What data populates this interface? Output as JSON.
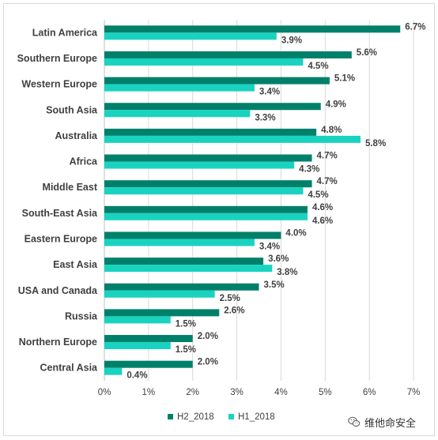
{
  "chart_data": {
    "type": "bar",
    "orientation": "horizontal",
    "categories": [
      "Latin America",
      "Southern Europe",
      "Western Europe",
      "South Asia",
      "Australia",
      "Africa",
      "Middle East",
      "South-East Asia",
      "Eastern Europe",
      "East Asia",
      "USA and Canada",
      "Russia",
      "Northern Europe",
      "Central Asia"
    ],
    "series": [
      {
        "name": "H2_2018",
        "color": "#00806a",
        "values": [
          6.7,
          5.6,
          5.1,
          4.9,
          4.8,
          4.7,
          4.7,
          4.6,
          4.0,
          3.6,
          3.5,
          2.6,
          2.0,
          2.0
        ]
      },
      {
        "name": "H1_2018",
        "color": "#19d3c0",
        "values": [
          3.9,
          4.5,
          3.4,
          3.3,
          5.8,
          4.3,
          4.5,
          4.6,
          3.4,
          3.8,
          2.5,
          1.5,
          1.5,
          0.4
        ]
      }
    ],
    "value_labels": {
      "H2_2018": [
        "6.7%",
        "5.6%",
        "5.1%",
        "4.9%",
        "4.8%",
        "4.7%",
        "4.7%",
        "4.6%",
        "4.0%",
        "3.6%",
        "3.5%",
        "2.6%",
        "2.0%",
        "2.0%"
      ],
      "H1_2018": [
        "3.9%",
        "4.5%",
        "3.4%",
        "3.3%",
        "5.8%",
        "4.3%",
        "4.5%",
        "4.6%",
        "3.4%",
        "3.8%",
        "2.5%",
        "1.5%",
        "1.5%",
        "0.4%"
      ]
    },
    "xlim": [
      0,
      7
    ],
    "x_ticks": [
      "0%",
      "1%",
      "2%",
      "3%",
      "4%",
      "5%",
      "6%",
      "7%"
    ],
    "grid": "vertical",
    "legend_position": "bottom",
    "title": "",
    "xlabel": "",
    "ylabel": ""
  },
  "watermark": {
    "text": "维他命安全",
    "icon": "wechat-icon"
  }
}
